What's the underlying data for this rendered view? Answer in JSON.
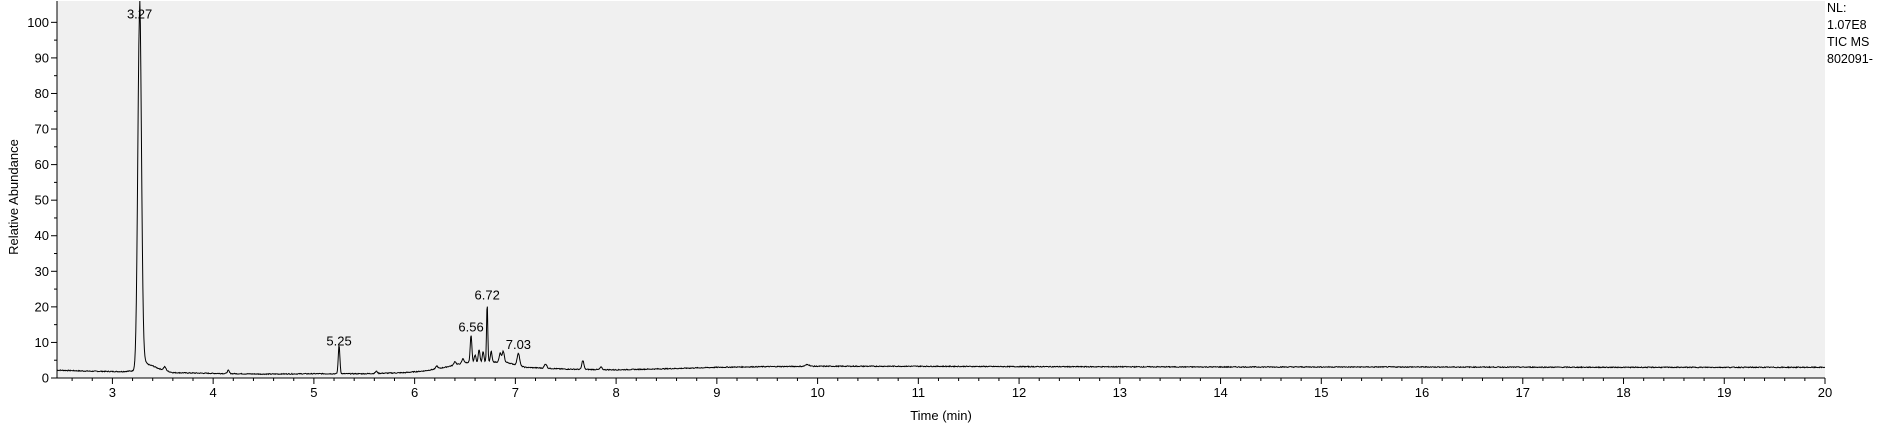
{
  "meta": {
    "nl_label": "NL:",
    "nl_value": "1.07E8",
    "trace": "TIC MS",
    "file": "802091-"
  },
  "colors": {
    "plot_background": "#f0f0f0",
    "trace": "#000000",
    "axis": "#000000"
  },
  "chart_data": {
    "type": "line",
    "title": "",
    "xlabel": "Time (min)",
    "ylabel": "Relative Abundance",
    "xlim": [
      2.45,
      20
    ],
    "ylim": [
      0,
      106
    ],
    "xticks": [
      3,
      4,
      5,
      6,
      7,
      8,
      9,
      10,
      11,
      12,
      13,
      14,
      15,
      16,
      17,
      18,
      19,
      20
    ],
    "xminor_step": 0.2,
    "yticks": [
      0,
      10,
      20,
      30,
      40,
      50,
      60,
      70,
      80,
      90,
      100
    ],
    "yminor_step": 5,
    "grid": false,
    "baseline": [
      [
        2.45,
        2.2
      ],
      [
        2.8,
        1.9
      ],
      [
        3.1,
        1.8
      ],
      [
        3.2,
        2.0
      ],
      [
        3.4,
        3.0
      ],
      [
        3.6,
        1.5
      ],
      [
        4.0,
        1.3
      ],
      [
        4.5,
        1.1
      ],
      [
        5.0,
        1.2
      ],
      [
        5.5,
        1.2
      ],
      [
        5.9,
        1.5
      ],
      [
        6.1,
        2.0
      ],
      [
        6.3,
        3.0
      ],
      [
        6.45,
        4.0
      ],
      [
        6.55,
        4.5
      ],
      [
        6.9,
        4.5
      ],
      [
        7.1,
        3.0
      ],
      [
        7.5,
        2.5
      ],
      [
        8.0,
        2.3
      ],
      [
        8.5,
        2.6
      ],
      [
        9.0,
        3.0
      ],
      [
        9.5,
        3.2
      ],
      [
        10.0,
        3.3
      ],
      [
        11.0,
        3.3
      ],
      [
        12.0,
        3.2
      ],
      [
        14.0,
        3.1
      ],
      [
        16.0,
        3.1
      ],
      [
        18.0,
        3.0
      ],
      [
        20.0,
        3.0
      ]
    ],
    "peaks": [
      {
        "rt": 3.27,
        "height": 100,
        "width": 0.018,
        "tail": 0.05
      },
      {
        "rt": 3.52,
        "height": 1.0,
        "width": 0.012
      },
      {
        "rt": 4.15,
        "height": 0.9,
        "width": 0.01
      },
      {
        "rt": 5.25,
        "height": 8,
        "width": 0.008
      },
      {
        "rt": 5.62,
        "height": 0.6,
        "width": 0.01
      },
      {
        "rt": 6.22,
        "height": 0.8,
        "width": 0.01
      },
      {
        "rt": 6.4,
        "height": 1.0,
        "width": 0.01
      },
      {
        "rt": 6.48,
        "height": 1.3,
        "width": 0.01
      },
      {
        "rt": 6.56,
        "height": 7.5,
        "width": 0.008
      },
      {
        "rt": 6.6,
        "height": 2.0,
        "width": 0.008
      },
      {
        "rt": 6.64,
        "height": 3.5,
        "width": 0.008
      },
      {
        "rt": 6.68,
        "height": 3.0,
        "width": 0.008
      },
      {
        "rt": 6.72,
        "height": 16.5,
        "width": 0.006
      },
      {
        "rt": 6.76,
        "height": 3.0,
        "width": 0.008
      },
      {
        "rt": 6.85,
        "height": 2.5,
        "width": 0.01
      },
      {
        "rt": 6.88,
        "height": 3.0,
        "width": 0.01
      },
      {
        "rt": 7.03,
        "height": 3.5,
        "width": 0.012
      },
      {
        "rt": 7.3,
        "height": 1.2,
        "width": 0.012
      },
      {
        "rt": 7.67,
        "height": 2.5,
        "width": 0.01
      },
      {
        "rt": 7.85,
        "height": 0.7,
        "width": 0.01
      },
      {
        "rt": 9.9,
        "height": 0.5,
        "width": 0.02
      }
    ],
    "annotations": [
      {
        "text": "3.27",
        "x": 3.27,
        "y": 100
      },
      {
        "text": "5.25",
        "x": 5.25,
        "y": 8
      },
      {
        "text": "6.56",
        "x": 6.56,
        "y": 12
      },
      {
        "text": "6.72",
        "x": 6.72,
        "y": 21
      },
      {
        "text": "7.03",
        "x": 7.03,
        "y": 7
      }
    ]
  }
}
